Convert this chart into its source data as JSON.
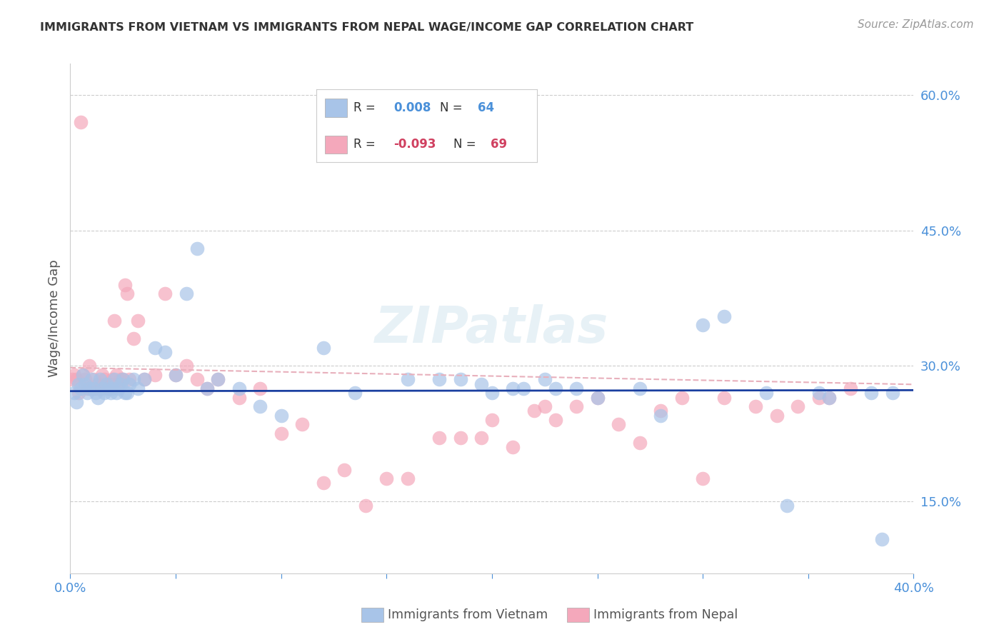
{
  "title": "IMMIGRANTS FROM VIETNAM VS IMMIGRANTS FROM NEPAL WAGE/INCOME GAP CORRELATION CHART",
  "source": "Source: ZipAtlas.com",
  "ylabel": "Wage/Income Gap",
  "xlim": [
    0.0,
    0.4
  ],
  "ylim": [
    0.07,
    0.635
  ],
  "yticks_right": [
    0.15,
    0.3,
    0.45,
    0.6
  ],
  "ytick_labels_right": [
    "15.0%",
    "30.0%",
    "45.0%",
    "60.0%"
  ],
  "xticks": [
    0.0,
    0.05,
    0.1,
    0.15,
    0.2,
    0.25,
    0.3,
    0.35,
    0.4
  ],
  "vietnam_color": "#a8c4e8",
  "nepal_color": "#f4a8bb",
  "vietnam_line_color": "#1a3fa0",
  "nepal_line_color": "#e8b0bc",
  "axis_color": "#4a90d9",
  "grid_color": "#cccccc",
  "watermark": "ZIPatlas",
  "vietnam_x": [
    0.002,
    0.003,
    0.004,
    0.005,
    0.006,
    0.007,
    0.008,
    0.009,
    0.01,
    0.011,
    0.012,
    0.013,
    0.014,
    0.015,
    0.016,
    0.017,
    0.018,
    0.019,
    0.02,
    0.021,
    0.022,
    0.023,
    0.024,
    0.025,
    0.026,
    0.027,
    0.028,
    0.03,
    0.032,
    0.035,
    0.04,
    0.045,
    0.05,
    0.055,
    0.06,
    0.065,
    0.07,
    0.08,
    0.09,
    0.1,
    0.12,
    0.135,
    0.16,
    0.175,
    0.185,
    0.195,
    0.2,
    0.21,
    0.215,
    0.225,
    0.23,
    0.24,
    0.25,
    0.27,
    0.28,
    0.3,
    0.31,
    0.33,
    0.34,
    0.355,
    0.36,
    0.38,
    0.385,
    0.39
  ],
  "vietnam_y": [
    0.27,
    0.26,
    0.28,
    0.275,
    0.29,
    0.28,
    0.27,
    0.275,
    0.285,
    0.275,
    0.27,
    0.265,
    0.285,
    0.275,
    0.27,
    0.28,
    0.275,
    0.27,
    0.275,
    0.285,
    0.27,
    0.275,
    0.28,
    0.285,
    0.27,
    0.27,
    0.28,
    0.285,
    0.275,
    0.285,
    0.32,
    0.315,
    0.29,
    0.38,
    0.43,
    0.275,
    0.285,
    0.275,
    0.255,
    0.245,
    0.32,
    0.27,
    0.285,
    0.285,
    0.285,
    0.28,
    0.27,
    0.275,
    0.275,
    0.285,
    0.275,
    0.275,
    0.265,
    0.275,
    0.245,
    0.345,
    0.355,
    0.27,
    0.145,
    0.27,
    0.265,
    0.27,
    0.108,
    0.27
  ],
  "nepal_x": [
    0.001,
    0.002,
    0.003,
    0.004,
    0.005,
    0.006,
    0.007,
    0.008,
    0.009,
    0.01,
    0.011,
    0.012,
    0.013,
    0.014,
    0.015,
    0.016,
    0.017,
    0.018,
    0.019,
    0.02,
    0.021,
    0.022,
    0.023,
    0.024,
    0.025,
    0.026,
    0.027,
    0.028,
    0.03,
    0.032,
    0.035,
    0.04,
    0.045,
    0.05,
    0.055,
    0.06,
    0.065,
    0.07,
    0.08,
    0.09,
    0.1,
    0.11,
    0.12,
    0.13,
    0.14,
    0.15,
    0.16,
    0.175,
    0.185,
    0.195,
    0.2,
    0.21,
    0.22,
    0.225,
    0.23,
    0.24,
    0.25,
    0.26,
    0.27,
    0.28,
    0.29,
    0.3,
    0.31,
    0.325,
    0.335,
    0.345,
    0.355,
    0.36,
    0.37
  ],
  "nepal_y": [
    0.285,
    0.29,
    0.285,
    0.27,
    0.57,
    0.29,
    0.285,
    0.275,
    0.3,
    0.275,
    0.285,
    0.275,
    0.28,
    0.275,
    0.29,
    0.285,
    0.28,
    0.275,
    0.28,
    0.285,
    0.35,
    0.29,
    0.28,
    0.285,
    0.285,
    0.39,
    0.38,
    0.285,
    0.33,
    0.35,
    0.285,
    0.29,
    0.38,
    0.29,
    0.3,
    0.285,
    0.275,
    0.285,
    0.265,
    0.275,
    0.225,
    0.235,
    0.17,
    0.185,
    0.145,
    0.175,
    0.175,
    0.22,
    0.22,
    0.22,
    0.24,
    0.21,
    0.25,
    0.255,
    0.24,
    0.255,
    0.265,
    0.235,
    0.215,
    0.25,
    0.265,
    0.175,
    0.265,
    0.255,
    0.245,
    0.255,
    0.265,
    0.265,
    0.275
  ]
}
